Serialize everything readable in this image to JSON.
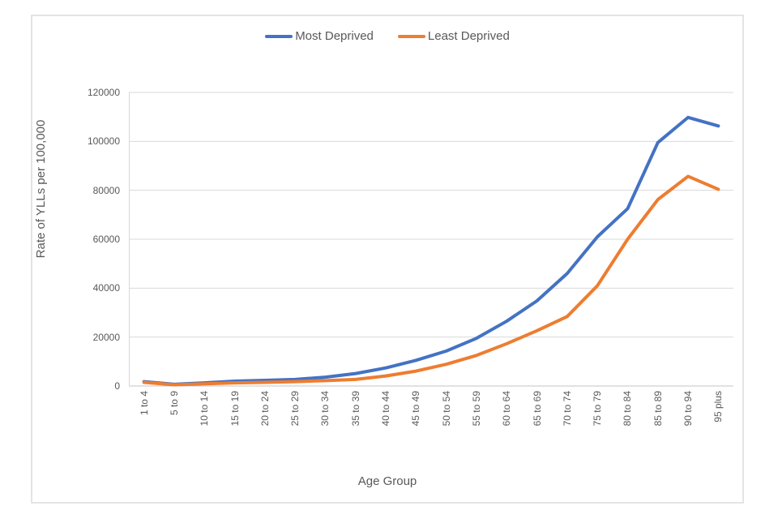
{
  "chart_data": {
    "type": "line",
    "title": "",
    "xlabel": "Age Group",
    "ylabel": "Rate of YLLs per 100,000",
    "ylim": [
      0,
      120000
    ],
    "ytick_interval": 20000,
    "grid": true,
    "legend_position": "top",
    "categories": [
      "1 to 4",
      "5 to 9",
      "10 to 14",
      "15 to 19",
      "20 to 24",
      "25 to 29",
      "30 to 34",
      "35 to 39",
      "40 to 44",
      "45 to 49",
      "50 to 54",
      "55 to 59",
      "60 to 64",
      "65 to 69",
      "70 to 74",
      "75 to 79",
      "80 to 84",
      "85 to 89",
      "90 to 94",
      "95 plus"
    ],
    "series": [
      {
        "name": "Most Deprived",
        "color": "#4472C4",
        "values": [
          1800,
          700,
          1300,
          2000,
          2300,
          2700,
          3600,
          5100,
          7400,
          10500,
          14300,
          19500,
          26500,
          34800,
          46000,
          61000,
          72500,
          99500,
          109800,
          106300
        ]
      },
      {
        "name": "Least Deprived",
        "color": "#ED7D31",
        "values": [
          1500,
          500,
          900,
          1300,
          1500,
          1800,
          2200,
          2700,
          4100,
          6100,
          8900,
          12500,
          17300,
          22600,
          28400,
          41000,
          60000,
          76200,
          85700,
          80400
        ]
      }
    ],
    "colors": {
      "grid": "#d9d9d9",
      "axis": "#c6c6c6",
      "text": "#595959",
      "frame_border": "#e4e4e4",
      "background": "#ffffff"
    }
  }
}
